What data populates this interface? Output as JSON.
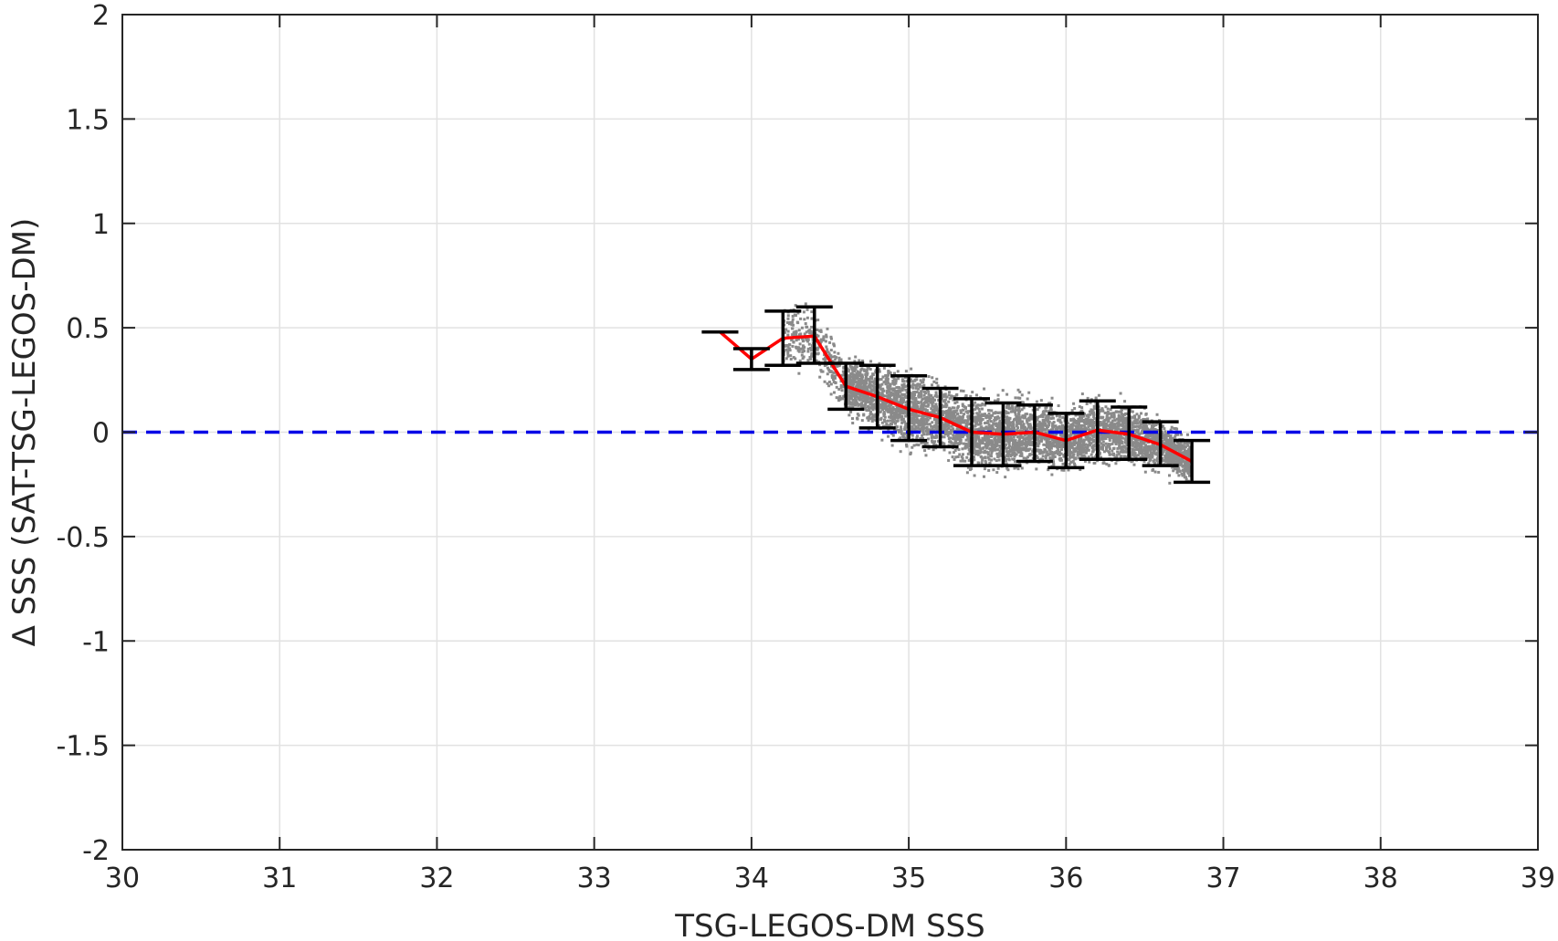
{
  "chart_data": {
    "type": "scatter",
    "title": "",
    "xlabel": "TSG-LEGOS-DM SSS",
    "ylabel": "Δ SSS (SAT-TSG-LEGOS-DM)",
    "xlim": [
      30,
      39
    ],
    "ylim": [
      -2,
      2
    ],
    "xticks": [
      30,
      31,
      32,
      33,
      34,
      35,
      36,
      37,
      38,
      39
    ],
    "yticks": [
      2,
      1.5,
      1,
      0.5,
      0,
      -0.5,
      -1,
      -1.5,
      -2
    ],
    "xtick_labels": [
      "30",
      "31",
      "32",
      "33",
      "34",
      "35",
      "36",
      "37",
      "38",
      "39"
    ],
    "ytick_labels": [
      "2",
      "1.5",
      "1",
      "0.5",
      "0",
      "-0.5",
      "-1",
      "-1.5",
      "-2"
    ],
    "grid": true,
    "reference_line": {
      "y": 0,
      "style": "dashed",
      "color": "#0000e6"
    },
    "scatter_color": "#8a8a8a",
    "mean_line_color": "#ff0000",
    "errorbar_color": "#000000",
    "scatter_cloud": {
      "x_range": [
        34.2,
        36.8
      ],
      "note_points": "dense cloud of gray points along the binned mean"
    },
    "binned_stats": [
      {
        "x": 33.8,
        "mean": 0.48,
        "low": 0.48,
        "high": 0.48
      },
      {
        "x": 34.0,
        "mean": 0.35,
        "low": 0.3,
        "high": 0.4
      },
      {
        "x": 34.2,
        "mean": 0.45,
        "low": 0.32,
        "high": 0.58
      },
      {
        "x": 34.4,
        "mean": 0.46,
        "low": 0.33,
        "high": 0.6
      },
      {
        "x": 34.6,
        "mean": 0.22,
        "low": 0.11,
        "high": 0.33
      },
      {
        "x": 34.8,
        "mean": 0.17,
        "low": 0.02,
        "high": 0.32
      },
      {
        "x": 35.0,
        "mean": 0.11,
        "low": -0.04,
        "high": 0.27
      },
      {
        "x": 35.2,
        "mean": 0.07,
        "low": -0.07,
        "high": 0.21
      },
      {
        "x": 35.4,
        "mean": 0.0,
        "low": -0.16,
        "high": 0.16
      },
      {
        "x": 35.6,
        "mean": -0.01,
        "low": -0.16,
        "high": 0.14
      },
      {
        "x": 35.8,
        "mean": 0.0,
        "low": -0.14,
        "high": 0.13
      },
      {
        "x": 36.0,
        "mean": -0.04,
        "low": -0.17,
        "high": 0.09
      },
      {
        "x": 36.2,
        "mean": 0.01,
        "low": -0.13,
        "high": 0.15
      },
      {
        "x": 36.4,
        "mean": -0.01,
        "low": -0.13,
        "high": 0.12
      },
      {
        "x": 36.6,
        "mean": -0.06,
        "low": -0.16,
        "high": 0.05
      },
      {
        "x": 36.8,
        "mean": -0.14,
        "low": -0.24,
        "high": -0.04
      }
    ]
  }
}
